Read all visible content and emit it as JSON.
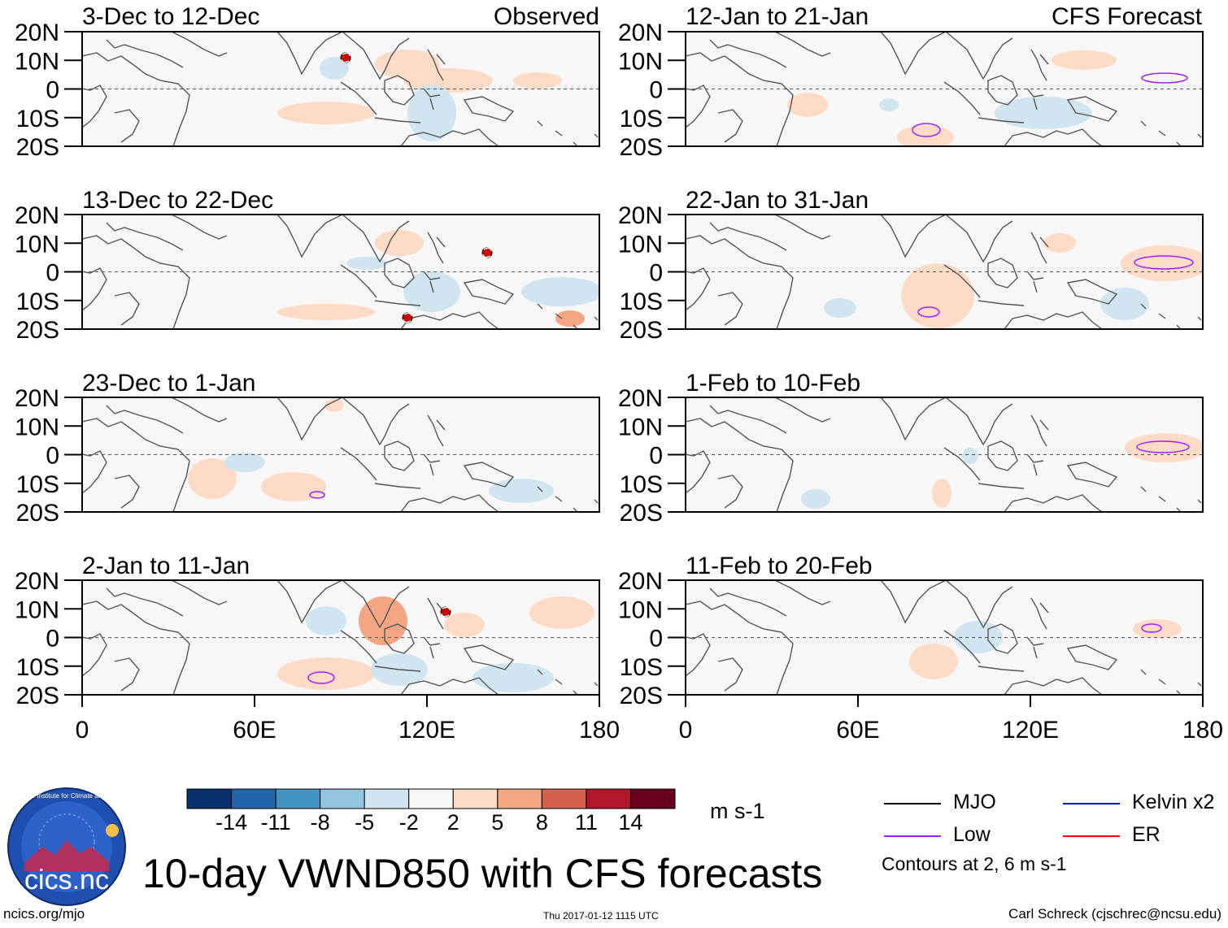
{
  "title": "10-day VWND850 with CFS forecasts",
  "headers": {
    "left": "Observed",
    "right": "CFS Forecast"
  },
  "lat_labels": [
    "20N",
    "10N",
    "0",
    "10S",
    "20S"
  ],
  "lon_labels": [
    "0",
    "60E",
    "120E",
    "180"
  ],
  "panels": [
    {
      "period": "3-Dec to 12-Dec",
      "column": "observed",
      "row": 0
    },
    {
      "period": "13-Dec to 22-Dec",
      "column": "observed",
      "row": 1
    },
    {
      "period": "23-Dec to 1-Jan",
      "column": "observed",
      "row": 2
    },
    {
      "period": "2-Jan to 11-Jan",
      "column": "observed",
      "row": 3
    },
    {
      "period": "12-Jan to 21-Jan",
      "column": "forecast",
      "row": 0
    },
    {
      "period": "22-Jan to 31-Jan",
      "column": "forecast",
      "row": 1
    },
    {
      "period": "1-Feb to 10-Feb",
      "column": "forecast",
      "row": 2
    },
    {
      "period": "11-Feb to 20-Feb",
      "column": "forecast",
      "row": 3
    }
  ],
  "colorbar": {
    "labels": [
      "-14",
      "-11",
      "-8",
      "-5",
      "-2",
      "2",
      "5",
      "8",
      "11",
      "14"
    ],
    "colors": [
      "#08306b",
      "#2166ac",
      "#4393c3",
      "#92c5de",
      "#d1e5f0",
      "#f7f7f7",
      "#fddbc7",
      "#f4a582",
      "#d6604d",
      "#b2182b",
      "#67001f"
    ],
    "units": "m s-1"
  },
  "legend": {
    "items": [
      {
        "label": "MJO",
        "color": "#000000"
      },
      {
        "label": "Kelvin x2",
        "color": "#0000ff"
      },
      {
        "label": "Low",
        "color": "#a020f0"
      },
      {
        "label": "ER",
        "color": "#ff0000"
      }
    ],
    "contour_note": "Contours at 2, 6 m s-1"
  },
  "logo_text": "cics.nc",
  "logo_ring_text": "Cooperative Institute for Climate and Satellites",
  "footer": {
    "url": "ncics.org/mjo",
    "timestamp": "Thu 2017-01-12 1115 UTC",
    "author": "Carl Schreck (cjschrec@ncsu.edu)"
  },
  "panel_features": {
    "map_background": "#f7f7f7",
    "positive_color": "#fddbc7",
    "negative_color": "#d1e5f0",
    "strong_positive_color": "#f4a582",
    "low_contour_color": "#a020f0",
    "cyclone_marker_color": "#cc0000"
  }
}
